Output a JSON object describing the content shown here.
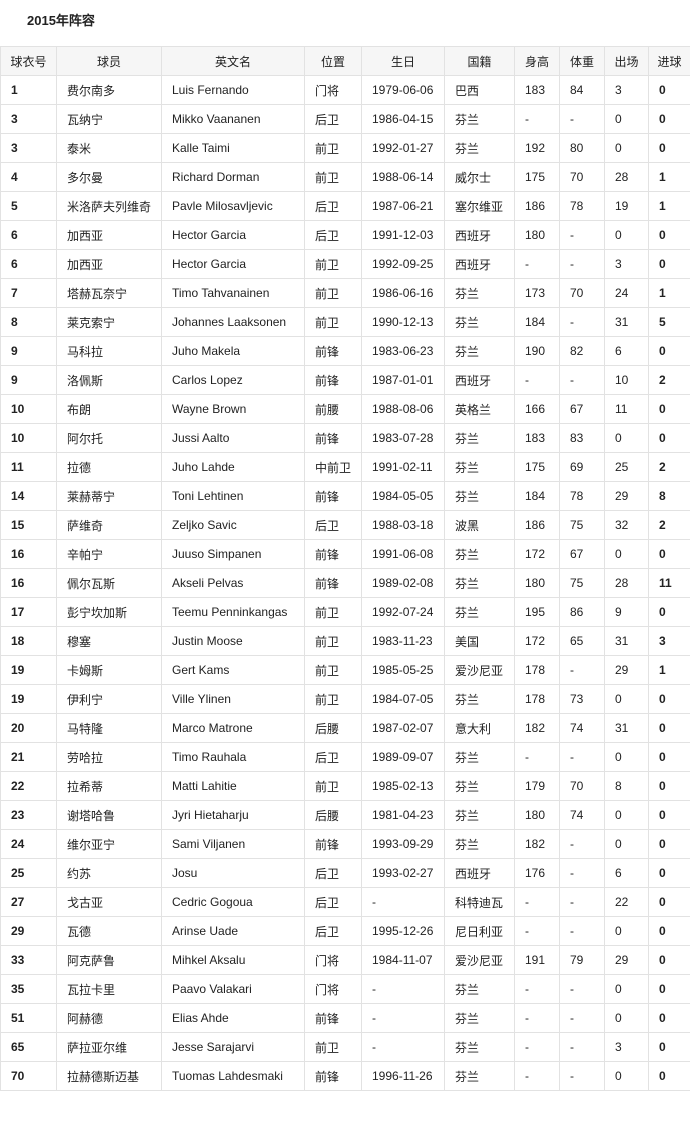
{
  "title": "2015年阵容",
  "table": {
    "header": [
      "球衣号",
      "球员",
      "英文名",
      "位置",
      "生日",
      "国籍",
      "身高",
      "体重",
      "出场",
      "进球"
    ],
    "rows": [
      [
        1,
        "费尔南多",
        "Luis Fernando",
        "门将",
        "1979-06-06",
        "巴西",
        183,
        84,
        3,
        0
      ],
      [
        3,
        "瓦纳宁",
        "Mikko Vaananen",
        "后卫",
        "1986-04-15",
        "芬兰",
        "-",
        "-",
        0,
        0
      ],
      [
        3,
        "泰米",
        "Kalle Taimi",
        "前卫",
        "1992-01-27",
        "芬兰",
        192,
        80,
        0,
        0
      ],
      [
        4,
        "多尔曼",
        "Richard Dorman",
        "前卫",
        "1988-06-14",
        "威尔士",
        175,
        70,
        28,
        1
      ],
      [
        5,
        "米洛萨夫列维奇",
        "Pavle Milosavljevic",
        "后卫",
        "1987-06-21",
        "塞尔维亚",
        186,
        78,
        19,
        1
      ],
      [
        6,
        "加西亚",
        "Hector Garcia",
        "后卫",
        "1991-12-03",
        "西班牙",
        180,
        "-",
        0,
        0
      ],
      [
        6,
        "加西亚",
        "Hector Garcia",
        "前卫",
        "1992-09-25",
        "西班牙",
        "-",
        "-",
        3,
        0
      ],
      [
        7,
        "塔赫瓦奈宁",
        "Timo Tahvanainen",
        "前卫",
        "1986-06-16",
        "芬兰",
        173,
        70,
        24,
        1
      ],
      [
        8,
        "莱克索宁",
        "Johannes Laaksonen",
        "前卫",
        "1990-12-13",
        "芬兰",
        184,
        "-",
        31,
        5
      ],
      [
        9,
        "马科拉",
        "Juho Makela",
        "前锋",
        "1983-06-23",
        "芬兰",
        190,
        82,
        6,
        0
      ],
      [
        9,
        "洛佩斯",
        "Carlos Lopez",
        "前锋",
        "1987-01-01",
        "西班牙",
        "-",
        "-",
        10,
        2
      ],
      [
        10,
        "布朗",
        "Wayne Brown",
        "前腰",
        "1988-08-06",
        "英格兰",
        166,
        67,
        11,
        0
      ],
      [
        10,
        "阿尔托",
        "Jussi Aalto",
        "前锋",
        "1983-07-28",
        "芬兰",
        183,
        83,
        0,
        0
      ],
      [
        11,
        "拉德",
        "Juho Lahde",
        "中前卫",
        "1991-02-11",
        "芬兰",
        175,
        69,
        25,
        2
      ],
      [
        14,
        "莱赫蒂宁",
        "Toni Lehtinen",
        "前锋",
        "1984-05-05",
        "芬兰",
        184,
        78,
        29,
        8
      ],
      [
        15,
        "萨维奇",
        "Zeljko Savic",
        "后卫",
        "1988-03-18",
        "波黑",
        186,
        75,
        32,
        2
      ],
      [
        16,
        "辛帕宁",
        "Juuso Simpanen",
        "前锋",
        "1991-06-08",
        "芬兰",
        172,
        67,
        0,
        0
      ],
      [
        16,
        "佩尔瓦斯",
        "Akseli Pelvas",
        "前锋",
        "1989-02-08",
        "芬兰",
        180,
        75,
        28,
        11
      ],
      [
        17,
        "彭宁坎加斯",
        "Teemu Penninkangas",
        "前卫",
        "1992-07-24",
        "芬兰",
        195,
        86,
        9,
        0
      ],
      [
        18,
        "穆塞",
        "Justin Moose",
        "前卫",
        "1983-11-23",
        "美国",
        172,
        65,
        31,
        3
      ],
      [
        19,
        "卡姆斯",
        "Gert Kams",
        "前卫",
        "1985-05-25",
        "爱沙尼亚",
        178,
        "-",
        29,
        1
      ],
      [
        19,
        "伊利宁",
        "Ville Ylinen",
        "前卫",
        "1984-07-05",
        "芬兰",
        178,
        73,
        0,
        0
      ],
      [
        20,
        "马特隆",
        "Marco Matrone",
        "后腰",
        "1987-02-07",
        "意大利",
        182,
        74,
        31,
        0
      ],
      [
        21,
        "劳哈拉",
        "Timo Rauhala",
        "后卫",
        "1989-09-07",
        "芬兰",
        "-",
        "-",
        0,
        0
      ],
      [
        22,
        "拉希蒂",
        "Matti Lahitie",
        "前卫",
        "1985-02-13",
        "芬兰",
        179,
        70,
        8,
        0
      ],
      [
        23,
        "谢塔哈鲁",
        "Jyri Hietaharju",
        "后腰",
        "1981-04-23",
        "芬兰",
        180,
        74,
        0,
        0
      ],
      [
        24,
        "维尔亚宁",
        "Sami Viljanen",
        "前锋",
        "1993-09-29",
        "芬兰",
        182,
        "-",
        0,
        0
      ],
      [
        25,
        "约苏",
        "Josu",
        "后卫",
        "1993-02-27",
        "西班牙",
        176,
        "-",
        6,
        0
      ],
      [
        27,
        "戈古亚",
        "Cedric Gogoua",
        "后卫",
        "-",
        "科特迪瓦",
        "-",
        "-",
        22,
        0
      ],
      [
        29,
        "瓦德",
        "Arinse Uade",
        "后卫",
        "1995-12-26",
        "尼日利亚",
        "-",
        "-",
        0,
        0
      ],
      [
        33,
        "阿克萨鲁",
        "Mihkel Aksalu",
        "门将",
        "1984-11-07",
        "爱沙尼亚",
        191,
        79,
        29,
        0
      ],
      [
        35,
        "瓦拉卡里",
        "Paavo Valakari",
        "门将",
        "-",
        "芬兰",
        "-",
        "-",
        0,
        0
      ],
      [
        51,
        "阿赫德",
        "Elias Ahde",
        "前锋",
        "-",
        "芬兰",
        "-",
        "-",
        0,
        0
      ],
      [
        65,
        "萨拉亚尔维",
        "Jesse Sarajarvi",
        "前卫",
        "-",
        "芬兰",
        "-",
        "-",
        3,
        0
      ],
      [
        70,
        "拉赫德斯迈基",
        "Tuomas Lahdesmaki",
        "前锋",
        "1996-11-26",
        "芬兰",
        "-",
        "-",
        0,
        0
      ]
    ]
  }
}
